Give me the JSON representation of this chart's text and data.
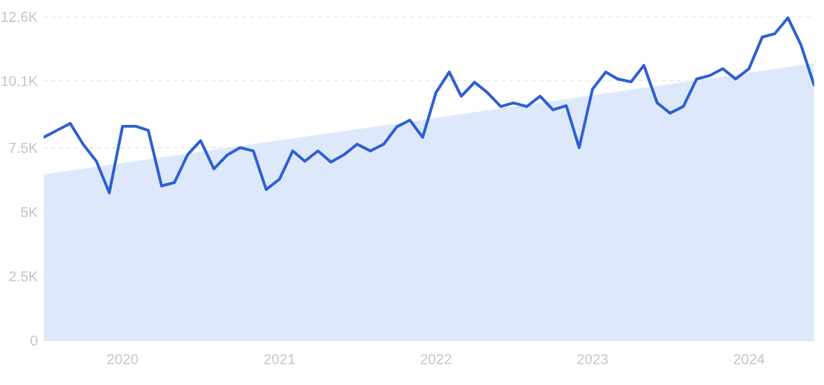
{
  "chart_data": {
    "type": "line",
    "x": [
      "2019-07",
      "2019-08",
      "2019-09",
      "2019-10",
      "2019-11",
      "2019-12",
      "2020-01",
      "2020-02",
      "2020-03",
      "2020-04",
      "2020-05",
      "2020-06",
      "2020-07",
      "2020-08",
      "2020-09",
      "2020-10",
      "2020-11",
      "2020-12",
      "2021-01",
      "2021-02",
      "2021-03",
      "2021-04",
      "2021-05",
      "2021-06",
      "2021-07",
      "2021-08",
      "2021-09",
      "2021-10",
      "2021-11",
      "2021-12",
      "2022-01",
      "2022-02",
      "2022-03",
      "2022-04",
      "2022-05",
      "2022-06",
      "2022-07",
      "2022-08",
      "2022-09",
      "2022-10",
      "2022-11",
      "2022-12",
      "2023-01",
      "2023-02",
      "2023-03",
      "2023-04",
      "2023-05",
      "2023-06",
      "2023-07",
      "2023-08",
      "2023-09",
      "2023-10",
      "2023-11",
      "2023-12",
      "2024-01",
      "2024-02",
      "2024-03",
      "2024-04",
      "2024-05",
      "2024-06"
    ],
    "series": [
      {
        "type": "area",
        "color": "#dde9fb",
        "x": [
          "2019-07",
          "2024-06"
        ],
        "values": [
          6460,
          10780
        ]
      },
      {
        "color": "#2e5fd3",
        "values": [
          7900,
          8170,
          8440,
          7630,
          6970,
          5740,
          8330,
          8330,
          8170,
          6010,
          6140,
          7230,
          7770,
          6670,
          7210,
          7500,
          7370,
          5870,
          6270,
          7370,
          6970,
          7370,
          6940,
          7230,
          7630,
          7370,
          7630,
          8300,
          8570,
          7900,
          9640,
          10440,
          9500,
          10040,
          9640,
          9100,
          9240,
          9100,
          9500,
          8970,
          9130,
          7500,
          9770,
          10440,
          10170,
          10060,
          10700,
          9240,
          8840,
          9100,
          10170,
          10300,
          10570,
          10170,
          10570,
          11800,
          11930,
          12550,
          11510,
          9930
        ]
      }
    ],
    "xlim": [
      "2019-07",
      "2024-06"
    ],
    "xticks": [
      {
        "value": "2020-01",
        "label": "2020"
      },
      {
        "value": "2021-01",
        "label": "2021"
      },
      {
        "value": "2022-01",
        "label": "2022"
      },
      {
        "value": "2023-01",
        "label": "2023"
      },
      {
        "value": "2024-01",
        "label": "2024"
      }
    ],
    "ylim": [
      0,
      12600
    ],
    "yticks": [
      0,
      {
        "value": 2500,
        "label": "2.5K"
      },
      {
        "value": 5000,
        "label": "5K"
      },
      {
        "value": 7500,
        "label": "7.5K"
      },
      {
        "value": 10100,
        "label": "10.1K"
      },
      {
        "value": 12600,
        "label": "12.6K"
      }
    ],
    "grid": "y"
  }
}
